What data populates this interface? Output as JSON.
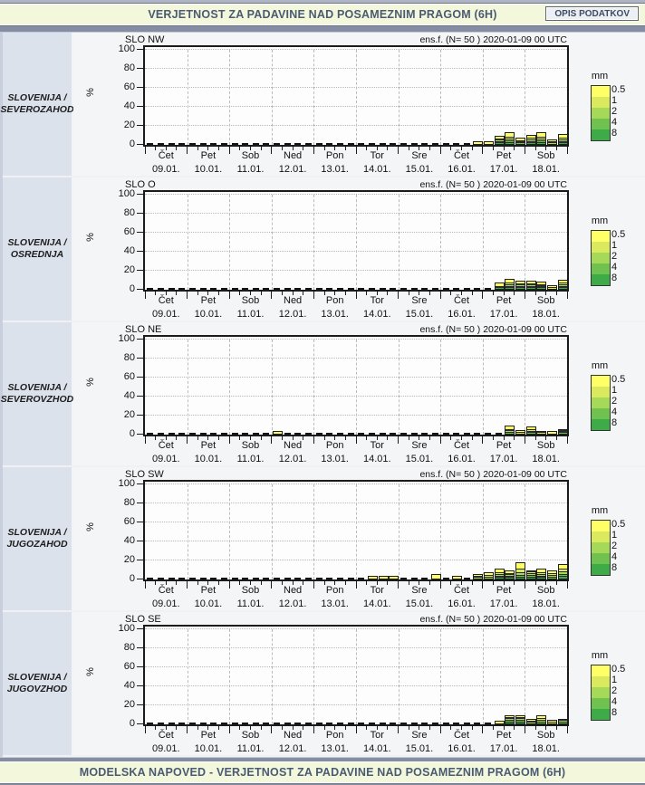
{
  "header": {
    "title": "VERJETNOST ZA PADAVINE NAD POSAMEZNIM PRAGOM (6H)",
    "button_label": "OPIS PODATKOV"
  },
  "footer": {
    "title": "MODELSKA NAPOVED - VERJETNOST ZA PADAVINE NAD POSAMEZNIM PRAGOM (6H)"
  },
  "axis": {
    "ylabel": "%",
    "yticks": [
      0,
      20,
      40,
      60,
      80,
      100
    ],
    "intervals_per_day": 4,
    "days": [
      {
        "name": "Čet",
        "date": "09.01."
      },
      {
        "name": "Pet",
        "date": "10.01."
      },
      {
        "name": "Sob",
        "date": "11.01."
      },
      {
        "name": "Ned",
        "date": "12.01."
      },
      {
        "name": "Pon",
        "date": "13.01."
      },
      {
        "name": "Tor",
        "date": "14.01."
      },
      {
        "name": "Sre",
        "date": "15.01."
      },
      {
        "name": "Čet",
        "date": "16.01."
      },
      {
        "name": "Pet",
        "date": "17.01."
      },
      {
        "name": "Sob",
        "date": "18.01."
      }
    ]
  },
  "legend": {
    "title": "mm",
    "thresholds_top_to_bottom": [
      "0.5",
      "1",
      "2",
      "4",
      "8"
    ],
    "colors": {
      "0.5": "#FFFF66",
      "1": "#D9EA5E",
      "2": "#A6D957",
      "4": "#6FC24F",
      "8": "#3DAB48"
    }
  },
  "panels": [
    {
      "region_line1": "SLOVENIJA /",
      "region_line2": "SEVEROZAHOD"
    },
    {
      "region_line1": "SLOVENIJA /",
      "region_line2": "OSREDNJA"
    },
    {
      "region_line1": "SLOVENIJA /",
      "region_line2": "SEVEROVZHOD"
    },
    {
      "region_line1": "SLOVENIJA /",
      "region_line2": "JUGOZAHOD"
    },
    {
      "region_line1": "SLOVENIJA /",
      "region_line2": "JUGOVZHOD"
    }
  ],
  "chart_data": [
    {
      "type": "bar",
      "title": "SLO NW",
      "annotation": "ens.f. (N= 50 ) 2020-01-09 00 UTC",
      "ylabel": "%",
      "ylim": [
        0,
        100
      ],
      "intervals_per_day": 4,
      "note": "stacked probability (%) of 6h precipitation exceeding thresholds; interval index 0-39 over days 09.01.-18.01.; zero intervals drawn as dashes",
      "stack_bottom_to_top": [
        "8",
        "4",
        "2",
        "1",
        "0.5"
      ],
      "bars": {
        "31": [
          0,
          0,
          0,
          0,
          2
        ],
        "32": [
          0,
          0,
          0,
          0,
          2
        ],
        "33": [
          1,
          1,
          2,
          1,
          3
        ],
        "34": [
          1,
          2,
          2,
          2,
          4
        ],
        "35": [
          0,
          1,
          1,
          1,
          3
        ],
        "36": [
          1,
          1,
          2,
          2,
          3
        ],
        "37": [
          1,
          2,
          2,
          2,
          4
        ],
        "38": [
          0,
          0,
          1,
          1,
          2
        ],
        "39": [
          1,
          1,
          2,
          2,
          4
        ]
      }
    },
    {
      "type": "bar",
      "title": "SLO O",
      "annotation": "ens.f. (N= 50 ) 2020-01-09 00 UTC",
      "ylabel": "%",
      "ylim": [
        0,
        100
      ],
      "intervals_per_day": 4,
      "stack_bottom_to_top": [
        "8",
        "4",
        "2",
        "1",
        "0.5"
      ],
      "bars": {
        "33": [
          1,
          0,
          1,
          0,
          4
        ],
        "34": [
          1,
          1,
          2,
          2,
          4
        ],
        "35": [
          1,
          1,
          2,
          1,
          3
        ],
        "36": [
          1,
          1,
          2,
          1,
          3
        ],
        "37": [
          1,
          1,
          1,
          1,
          3
        ],
        "38": [
          0,
          0,
          0,
          1,
          2
        ],
        "39": [
          1,
          1,
          2,
          2,
          3
        ]
      }
    },
    {
      "type": "bar",
      "title": "SLO NE",
      "annotation": "ens.f. (N= 50 ) 2020-01-09 00 UTC",
      "ylabel": "%",
      "ylim": [
        0,
        100
      ],
      "intervals_per_day": 4,
      "stack_bottom_to_top": [
        "8",
        "4",
        "2",
        "1",
        "0.5"
      ],
      "bars": {
        "12": [
          0,
          0,
          0,
          0,
          2
        ],
        "34": [
          0,
          1,
          2,
          1,
          4
        ],
        "35": [
          0,
          0,
          0,
          1,
          2
        ],
        "36": [
          0,
          1,
          1,
          2,
          3
        ],
        "37": [
          0,
          0,
          0,
          1,
          1
        ],
        "38": [
          0,
          0,
          0,
          0,
          2
        ],
        "39": [
          0,
          1,
          1,
          1,
          1
        ]
      }
    },
    {
      "type": "bar",
      "title": "SLO SW",
      "annotation": "ens.f. (N= 50 ) 2020-01-09 00 UTC",
      "ylabel": "%",
      "ylim": [
        0,
        100
      ],
      "intervals_per_day": 4,
      "stack_bottom_to_top": [
        "8",
        "4",
        "2",
        "1",
        "0.5"
      ],
      "bars": {
        "21": [
          0,
          0,
          0,
          0,
          2
        ],
        "22": [
          0,
          0,
          0,
          0,
          2
        ],
        "23": [
          0,
          0,
          0,
          0,
          2
        ],
        "27": [
          0,
          0,
          0,
          0,
          4
        ],
        "29": [
          0,
          0,
          0,
          0,
          2
        ],
        "31": [
          0,
          0,
          1,
          1,
          2
        ],
        "32": [
          0,
          0,
          1,
          2,
          3
        ],
        "33": [
          1,
          1,
          2,
          2,
          4
        ],
        "34": [
          1,
          1,
          2,
          1,
          3
        ],
        "35": [
          1,
          2,
          3,
          4,
          6
        ],
        "36": [
          1,
          2,
          2,
          2,
          1
        ],
        "37": [
          1,
          1,
          2,
          2,
          4
        ],
        "38": [
          0,
          1,
          2,
          2,
          3
        ],
        "39": [
          2,
          2,
          3,
          3,
          4
        ]
      }
    },
    {
      "type": "bar",
      "title": "SLO SE",
      "annotation": "ens.f. (N= 50 ) 2020-01-09 00 UTC",
      "ylabel": "%",
      "ylim": [
        0,
        100
      ],
      "intervals_per_day": 4,
      "stack_bottom_to_top": [
        "8",
        "4",
        "2",
        "1",
        "0.5"
      ],
      "bars": {
        "33": [
          0,
          0,
          0,
          0,
          2
        ],
        "34": [
          1,
          2,
          2,
          1,
          2
        ],
        "35": [
          1,
          2,
          2,
          1,
          2
        ],
        "36": [
          0,
          0,
          1,
          1,
          2
        ],
        "37": [
          0,
          1,
          2,
          2,
          3
        ],
        "38": [
          0,
          0,
          0,
          1,
          2
        ],
        "39": [
          0,
          1,
          2,
          1,
          0
        ]
      }
    }
  ]
}
